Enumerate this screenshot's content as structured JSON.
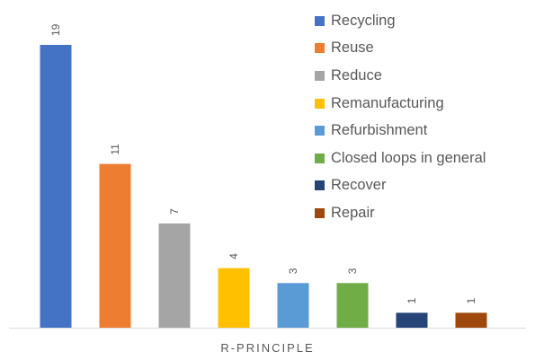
{
  "chart_data": {
    "type": "bar",
    "categories": [
      "Recycling",
      "Reuse",
      "Reduce",
      "Remanufacturing",
      "Refurbishment",
      "Closed loops in general",
      "Recover",
      "Repair"
    ],
    "values": [
      19,
      11,
      7,
      4,
      3,
      3,
      1,
      1
    ],
    "colors": [
      "#4472C4",
      "#ED7D31",
      "#A5A5A5",
      "#FFC000",
      "#5B9BD5",
      "#70AD47",
      "#264478",
      "#9E480E"
    ],
    "title": "",
    "xlabel": "R-PRINCIPLE",
    "ylabel": "",
    "ylim": [
      0,
      19
    ],
    "grid": false,
    "legend": "top-right",
    "data_labels": true
  }
}
